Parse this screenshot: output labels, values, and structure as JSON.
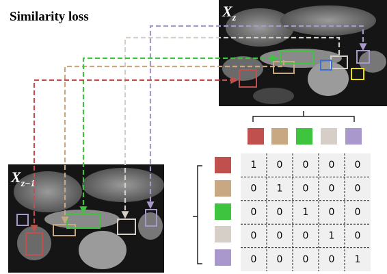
{
  "title": "Similarity loss",
  "images": [
    {
      "label": "X",
      "subscript": "z"
    },
    {
      "label": "X",
      "subscript": "z−1"
    }
  ],
  "matrix": {
    "rows": [
      [
        1,
        0,
        0,
        0,
        0
      ],
      [
        0,
        1,
        0,
        0,
        0
      ],
      [
        0,
        0,
        1,
        0,
        0
      ],
      [
        0,
        0,
        0,
        1,
        0
      ],
      [
        0,
        0,
        0,
        0,
        1
      ]
    ]
  }
}
